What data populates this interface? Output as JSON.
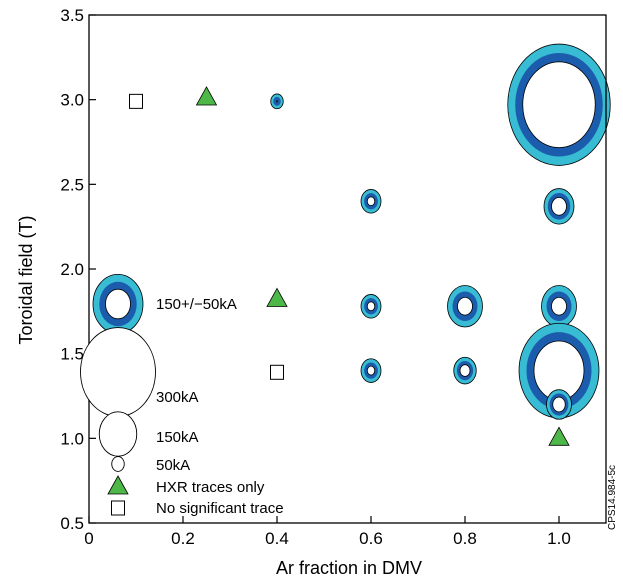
{
  "chart_data": {
    "type": "scatter",
    "xlabel": "Ar fraction in DMV",
    "ylabel": "Toroidal field (T)",
    "xlim": [
      0,
      1.1
    ],
    "ylim": [
      0.5,
      3.5
    ],
    "x_ticks": [
      {
        "value": 0,
        "label": "0"
      },
      {
        "value": 0.2,
        "label": "0.2"
      },
      {
        "value": 0.4,
        "label": "0.4"
      },
      {
        "value": 0.6,
        "label": "0.6"
      },
      {
        "value": 0.8,
        "label": "0.8"
      },
      {
        "value": 1.0,
        "label": "1.0"
      }
    ],
    "y_ticks": [
      {
        "value": 0.5,
        "label": "0.5"
      },
      {
        "value": 1.0,
        "label": "1.0"
      },
      {
        "value": 1.5,
        "label": "1.5"
      },
      {
        "value": 2.0,
        "label": "2.0"
      },
      {
        "value": 2.5,
        "label": "2.5"
      },
      {
        "value": 3.0,
        "label": "3.0"
      },
      {
        "value": 3.5,
        "label": "3.5"
      }
    ],
    "grid": false,
    "units": "kA",
    "rings": [
      {
        "x": 0.4,
        "y": 2.99,
        "inner_kA": 5,
        "mean_kA": 30,
        "outer_kA": 50
      },
      {
        "x": 1.0,
        "y": 2.97,
        "inner_kA": 290,
        "mean_kA": 350,
        "outer_kA": 410
      },
      {
        "x": 0.6,
        "y": 2.4,
        "inner_kA": 30,
        "mean_kA": 55,
        "outer_kA": 80
      },
      {
        "x": 1.0,
        "y": 2.37,
        "inner_kA": 60,
        "mean_kA": 90,
        "outer_kA": 120
      },
      {
        "x": 0.6,
        "y": 1.78,
        "inner_kA": 30,
        "mean_kA": 55,
        "outer_kA": 80
      },
      {
        "x": 0.8,
        "y": 1.78,
        "inner_kA": 60,
        "mean_kA": 100,
        "outer_kA": 140
      },
      {
        "x": 1.0,
        "y": 1.78,
        "inner_kA": 60,
        "mean_kA": 100,
        "outer_kA": 140
      },
      {
        "x": 0.6,
        "y": 1.4,
        "inner_kA": 30,
        "mean_kA": 55,
        "outer_kA": 80
      },
      {
        "x": 0.8,
        "y": 1.4,
        "inner_kA": 40,
        "mean_kA": 65,
        "outer_kA": 90
      },
      {
        "x": 1.0,
        "y": 1.4,
        "inner_kA": 200,
        "mean_kA": 260,
        "outer_kA": 320
      },
      {
        "x": 1.0,
        "y": 1.2,
        "inner_kA": 50,
        "mean_kA": 75,
        "outer_kA": 100
      }
    ],
    "hxr_only": [
      {
        "x": 0.25,
        "y": 3.01
      },
      {
        "x": 0.4,
        "y": 1.82
      },
      {
        "x": 1.0,
        "y": 1.0
      }
    ],
    "no_significant_trace": [
      {
        "x": 0.1,
        "y": 2.99
      },
      {
        "x": 0.4,
        "y": 1.39
      }
    ],
    "legend": {
      "ring_example_label": "150+/−50kA",
      "ring_example": {
        "inner_kA": 100,
        "mean_kA": 150,
        "outer_kA": 200
      },
      "size_keys": [
        {
          "label": "300kA",
          "kA": 300
        },
        {
          "label": "150kA",
          "kA": 150
        },
        {
          "label": "50kA",
          "kA": 50
        }
      ],
      "hxr_label": "HXR traces only",
      "nst_label": "No significant trace"
    },
    "colors": {
      "outer_ring": "#38bcd3",
      "mean_ring": "#1c5cad",
      "inner": "#ffffff",
      "outline": "#000000",
      "triangle_fill": "#4db848"
    },
    "plate_id": "CPS14.984-5c"
  }
}
